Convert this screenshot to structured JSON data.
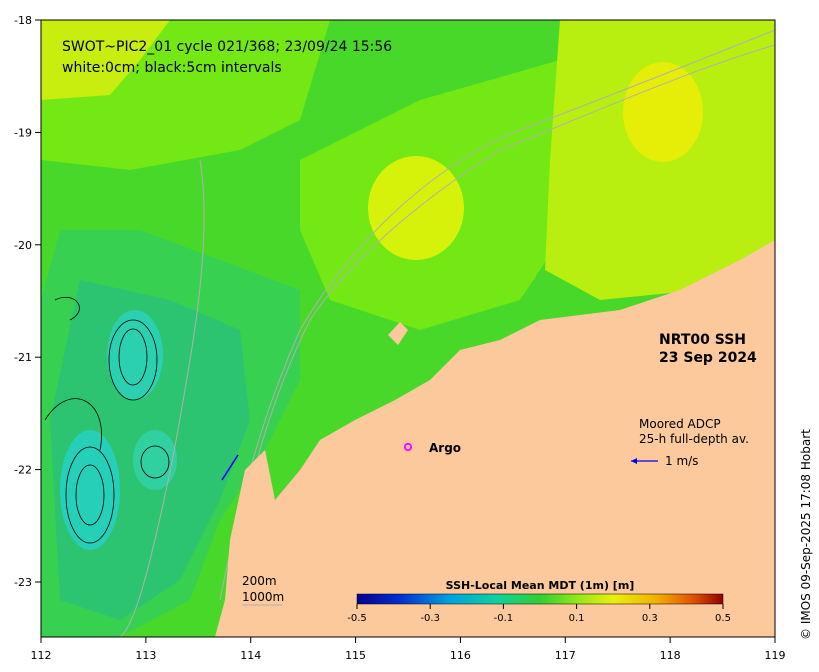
{
  "title_lines": [
    "SWOT~PIC2_01 cycle 021/368; 23/09/24 15:56",
    "white:0cm; black:5cm intervals"
  ],
  "product_label": [
    "NRT00 SSH",
    "23 Sep 2024"
  ],
  "adcp_label": [
    "Moored ADCP",
    "25-h full-depth av."
  ],
  "adcp_scale": "1 m/s",
  "argo_label": "Argo",
  "depth_legend": [
    "200m",
    "1000m"
  ],
  "colorbar": {
    "title": "SSH-Local Mean MDT (1m) [m]",
    "ticks": [
      "-0.5",
      "-0.3",
      "-0.1",
      "0.1",
      "0.3",
      "0.5"
    ]
  },
  "credit": "© IMOS 09-Sep-2025 17:08 Hobart",
  "x_ticks": [
    "112",
    "113",
    "114",
    "115",
    "116",
    "117",
    "118",
    "119"
  ],
  "y_ticks": [
    "-18",
    "-19",
    "-20",
    "-21",
    "-22",
    "-23"
  ],
  "colors": {
    "land": "#fcc99c",
    "ssh_green": "#55e21a",
    "ssh_teal": "#2cc777",
    "ssh_yellow": "#d8f40c",
    "argo": "#ff00ff",
    "adcp_arrow": "#0000ee"
  }
}
